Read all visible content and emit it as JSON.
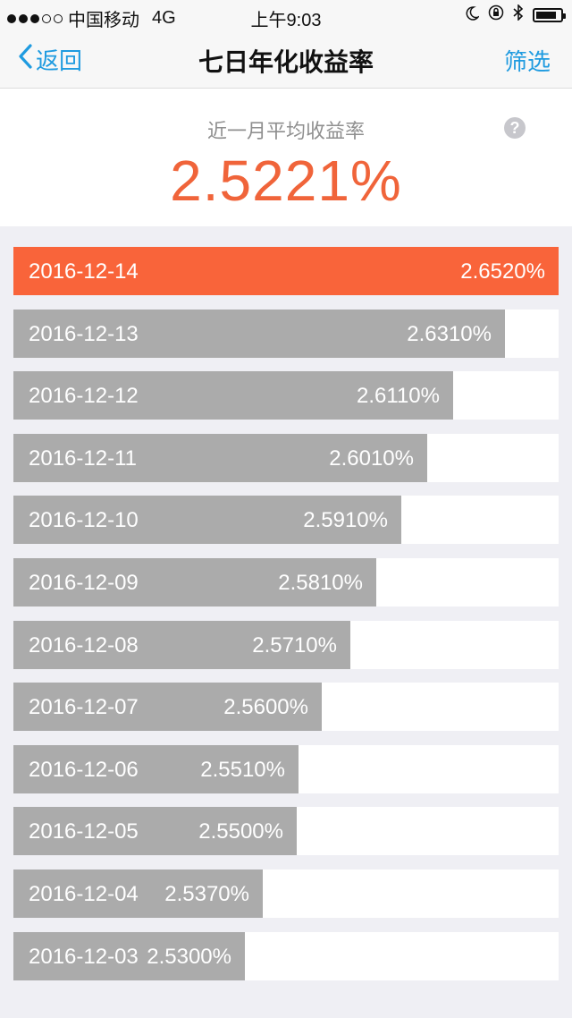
{
  "status_bar": {
    "carrier": "中国移动",
    "network": "4G",
    "time": "上午9:03",
    "signal_filled": 3,
    "signal_total": 5,
    "battery_level": 0.85
  },
  "nav": {
    "back_label": "返回",
    "title": "七日年化收益率",
    "filter_label": "筛选"
  },
  "summary": {
    "label": "近一月平均收益率",
    "value": "2.5221%",
    "help_icon": "question-mark-circle-icon"
  },
  "colors": {
    "accent": "#f9643a",
    "bar": "#ababab",
    "link": "#1f9be0"
  },
  "rates": {
    "scale_min": 2.44,
    "scale_max": 2.652,
    "items": [
      {
        "date": "2016-12-14",
        "rate": "2.6520%",
        "value": 2.652,
        "active": true
      },
      {
        "date": "2016-12-13",
        "rate": "2.6310%",
        "value": 2.631
      },
      {
        "date": "2016-12-12",
        "rate": "2.6110%",
        "value": 2.611
      },
      {
        "date": "2016-12-11",
        "rate": "2.6010%",
        "value": 2.601
      },
      {
        "date": "2016-12-10",
        "rate": "2.5910%",
        "value": 2.591
      },
      {
        "date": "2016-12-09",
        "rate": "2.5810%",
        "value": 2.581
      },
      {
        "date": "2016-12-08",
        "rate": "2.5710%",
        "value": 2.571
      },
      {
        "date": "2016-12-07",
        "rate": "2.5600%",
        "value": 2.56
      },
      {
        "date": "2016-12-06",
        "rate": "2.5510%",
        "value": 2.551
      },
      {
        "date": "2016-12-05",
        "rate": "2.5500%",
        "value": 2.55
      },
      {
        "date": "2016-12-04",
        "rate": "2.5370%",
        "value": 2.537
      },
      {
        "date": "2016-12-03",
        "rate": "2.5300%",
        "value": 2.53
      }
    ]
  }
}
